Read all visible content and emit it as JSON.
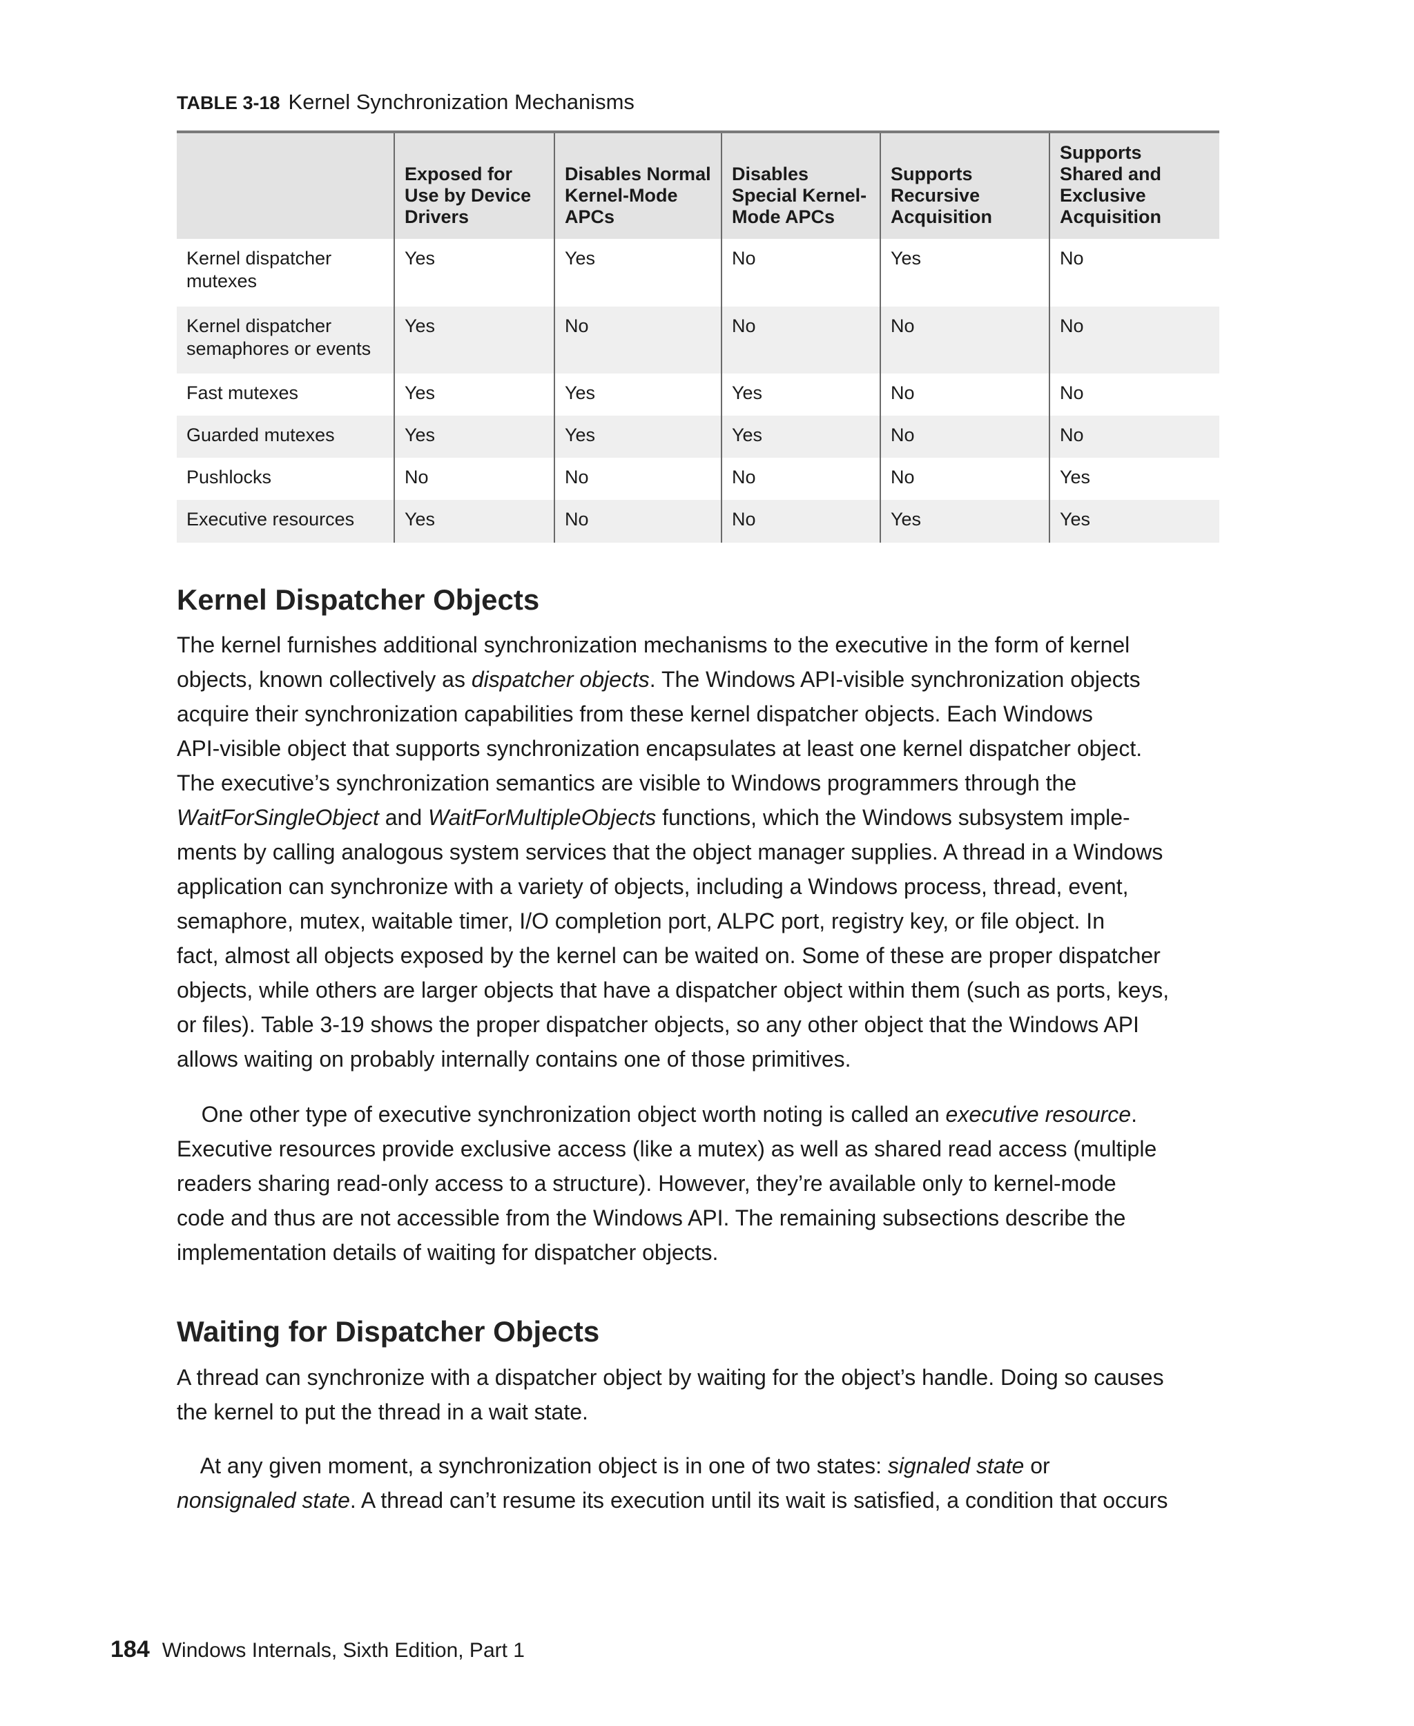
{
  "table": {
    "label": "TABLE 3-18",
    "title": "Kernel Synchronization Mechanisms",
    "headers": [
      "",
      "Exposed for Use by Device Drivers",
      "Disables Normal Kernel-Mode APCs",
      "Disables Special Kernel-Mode APCs",
      "Supports Recursive Acquisition",
      "Supports Shared and Exclusive Acquisition"
    ],
    "rows": [
      [
        "Kernel dispatcher mutexes",
        "Yes",
        "Yes",
        "No",
        "Yes",
        "No"
      ],
      [
        "Kernel dispatcher semaphores or events",
        "Yes",
        "No",
        "No",
        "No",
        "No"
      ],
      [
        "Fast mutexes",
        "Yes",
        "Yes",
        "Yes",
        "No",
        "No"
      ],
      [
        "Guarded mutexes",
        "Yes",
        "Yes",
        "Yes",
        "No",
        "No"
      ],
      [
        "Pushlocks",
        "No",
        "No",
        "No",
        "No",
        "Yes"
      ],
      [
        "Executive resources",
        "Yes",
        "No",
        "No",
        "Yes",
        "Yes"
      ]
    ]
  },
  "sections": [
    {
      "heading": "Kernel Dispatcher Objects",
      "paragraphs": [
        [
          [
            {
              "t": "The kernel furnishes additional synchronization mechanisms to the executive in the form of kernel"
            }
          ],
          [
            {
              "t": "objects, known collectively as "
            },
            {
              "t": "dispatcher objects",
              "i": true
            },
            {
              "t": ". The Windows API-visible synchronization objects"
            }
          ],
          [
            {
              "t": "acquire their synchronization capabilities from these kernel dispatcher objects. Each Windows"
            }
          ],
          [
            {
              "t": "API-visible object that supports synchronization encapsulates at least one kernel dispatcher object."
            }
          ],
          [
            {
              "t": "The executive’s synchronization semantics are visible to Windows programmers through the"
            }
          ],
          [
            {
              "t": "WaitForSingleObject",
              "i": true
            },
            {
              "t": " and "
            },
            {
              "t": "WaitForMultipleObjects",
              "i": true
            },
            {
              "t": " functions, which the Windows subsystem imple-"
            }
          ],
          [
            {
              "t": "ments by calling analogous system services that the object manager supplies. A thread in a Windows"
            }
          ],
          [
            {
              "t": "application can synchronize with a variety of objects, including a Windows process, thread, event,"
            }
          ],
          [
            {
              "t": "semaphore, mutex, waitable timer, I/O completion port, ALPC port, registry key, or file object. In"
            }
          ],
          [
            {
              "t": "fact, almost all objects exposed by the kernel can be waited on. Some of these are proper dispatcher"
            }
          ],
          [
            {
              "t": "objects, while others are larger objects that have a dispatcher object within them (such as ports, keys,"
            }
          ],
          [
            {
              "t": "or files). Table 3-19 shows the proper dispatcher objects, so any other object that the Windows API"
            }
          ],
          [
            {
              "t": "allows waiting on probably internally contains one of those primitives."
            }
          ]
        ],
        [
          [
            {
              "t": "    One other type of executive synchronization object worth noting is called an "
            },
            {
              "t": "executive resource",
              "i": true
            },
            {
              "t": "."
            }
          ],
          [
            {
              "t": "Executive resources provide exclusive access (like a mutex) as well as shared read access (multiple"
            }
          ],
          [
            {
              "t": "readers sharing read-only access to a structure). However, they’re available only to kernel-mode"
            }
          ],
          [
            {
              "t": "code and thus are not accessible from the Windows API. The remaining subsections describe the"
            }
          ],
          [
            {
              "t": "implementation details of waiting for dispatcher objects."
            }
          ]
        ]
      ]
    },
    {
      "heading": "Waiting for Dispatcher Objects",
      "paragraphs": [
        [
          [
            {
              "t": "A thread can synchronize with a dispatcher object by waiting for the object’s handle. Doing so causes"
            }
          ],
          [
            {
              "t": "the kernel to put the thread in a wait state."
            }
          ]
        ],
        [
          [
            {
              "t": "    At any given moment, a synchronization object is in one of two states: "
            },
            {
              "t": "signaled state",
              "i": true
            },
            {
              "t": " or"
            }
          ],
          [
            {
              "t": "nonsignaled state",
              "i": true
            },
            {
              "t": ". A thread can’t resume its execution until its wait is satisfied, a condition that occurs"
            }
          ]
        ]
      ]
    }
  ],
  "footer": {
    "page_number": "184",
    "book_title": "Windows Internals, Sixth Edition, Part 1"
  }
}
